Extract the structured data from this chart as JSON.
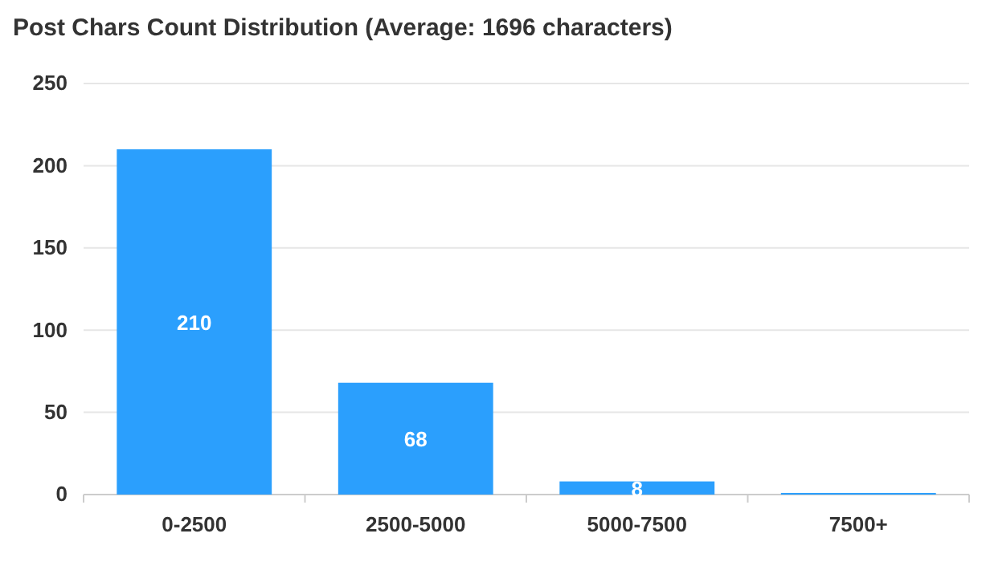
{
  "chart_data": {
    "type": "bar",
    "title": "Post Chars Count Distribution (Average: 1696 characters)",
    "categories": [
      "0-2500",
      "2500-5000",
      "5000-7500",
      "7500+"
    ],
    "values": [
      210,
      68,
      8,
      1
    ],
    "value_labels": [
      "210",
      "68",
      "8",
      null
    ],
    "color": "#2b9ffd",
    "ylim": [
      0,
      250
    ],
    "yticks": [
      0,
      50,
      100,
      150,
      200,
      250
    ],
    "grid": "y"
  }
}
